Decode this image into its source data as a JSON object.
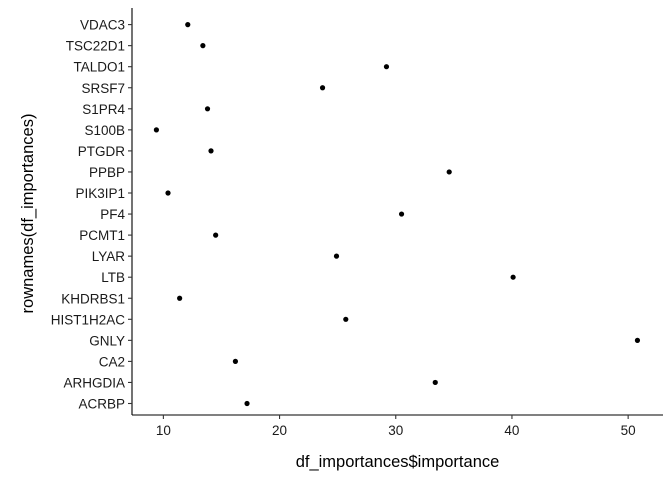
{
  "chart_data": {
    "type": "scatter",
    "title": "",
    "xlabel": "df_importances$importance",
    "ylabel": "rownames(df_importances)",
    "xlim": [
      7.3,
      53.0
    ],
    "x_ticks": [
      10,
      20,
      30,
      40,
      50
    ],
    "grid": false,
    "legend": "none",
    "point_color": "#000000",
    "categories": [
      "ACRBP",
      "ARHGDIA",
      "CA2",
      "GNLY",
      "HIST1H2AC",
      "KHDRBS1",
      "LTB",
      "LYAR",
      "PCMT1",
      "PF4",
      "PIK3IP1",
      "PPBP",
      "PTGDR",
      "S100B",
      "S1PR4",
      "SRSF7",
      "TALDO1",
      "TSC22D1",
      "VDAC3"
    ],
    "values": [
      17.2,
      33.4,
      16.2,
      50.8,
      25.7,
      11.4,
      40.1,
      24.9,
      14.5,
      30.5,
      10.4,
      34.6,
      14.1,
      9.4,
      13.8,
      23.7,
      29.2,
      13.4,
      12.1
    ]
  }
}
